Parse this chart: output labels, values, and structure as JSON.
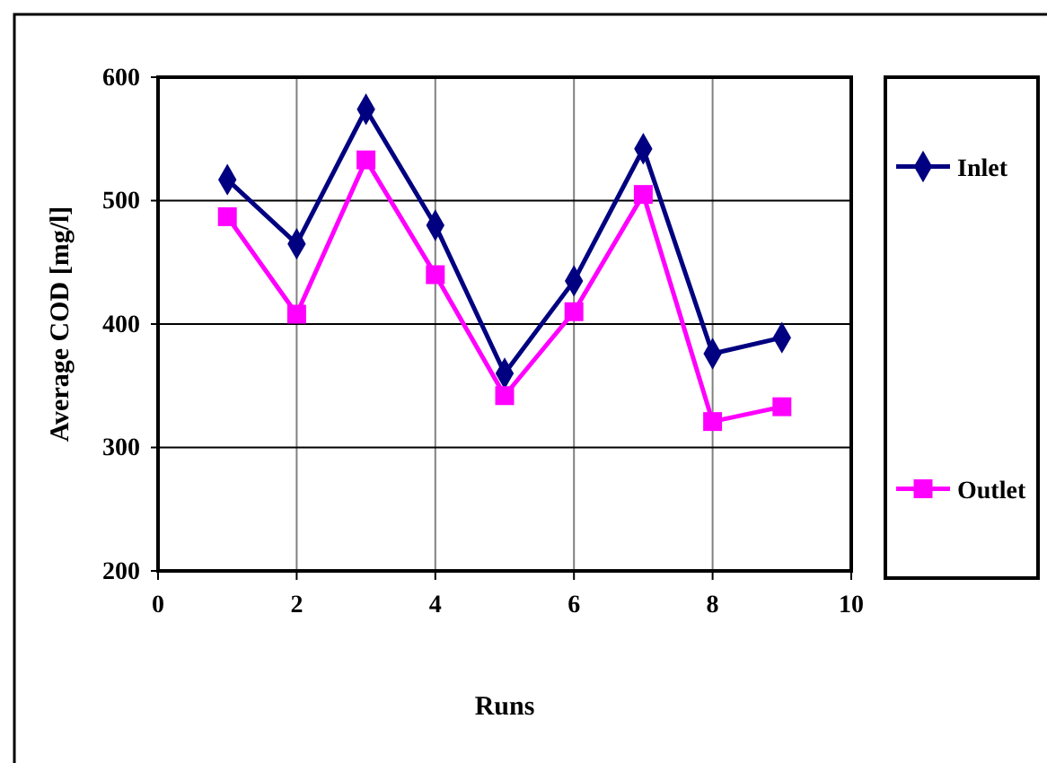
{
  "chart_data": {
    "type": "line",
    "xlabel": "Runs",
    "ylabel": "Average COD [mg/l]",
    "x": [
      1,
      2,
      3,
      4,
      5,
      6,
      7,
      8,
      9
    ],
    "series": [
      {
        "name": "Inlet",
        "color": "#000080",
        "marker": "diamond",
        "values": [
          517,
          465,
          574,
          480,
          360,
          435,
          542,
          376,
          389
        ]
      },
      {
        "name": "Outlet",
        "color": "#ff00ff",
        "marker": "square",
        "values": [
          487,
          408,
          533,
          440,
          342,
          410,
          505,
          321,
          333
        ]
      }
    ],
    "xlim": [
      0,
      10
    ],
    "xticks": [
      0,
      2,
      4,
      6,
      8,
      10
    ],
    "ylim": [
      200,
      600
    ],
    "yticks": [
      200,
      300,
      400,
      500,
      600
    ],
    "grid": true,
    "legend": "right",
    "line_style": "solid"
  }
}
